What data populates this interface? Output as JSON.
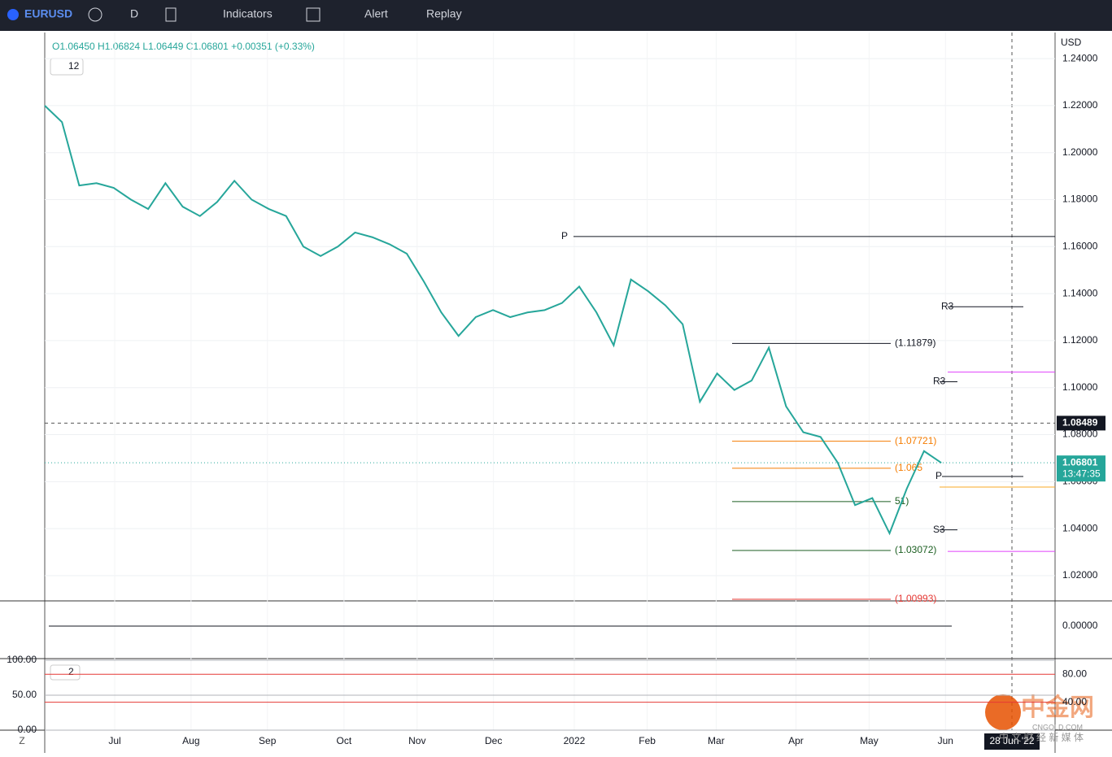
{
  "toolbar": {
    "symbol": "EURUSD",
    "interval": "D",
    "indicators": "Indicators",
    "alert": "Alert",
    "replay": "Replay"
  },
  "legend": {
    "ohlc": "O1.06450 H1.06824 L1.06449 C1.06801 +0.00351 (+0.33%)",
    "badge_main": "12",
    "badge_osc": "2"
  },
  "currency": "USD",
  "chart_data": [
    {
      "type": "line",
      "xlim": [
        0,
        410.2
      ],
      "ylim": [
        1.0096,
        1.2511
      ],
      "yticks": [
        {
          "value": 1.02,
          "label": "1.02000"
        },
        {
          "value": 1.04,
          "label": "1.04000"
        },
        {
          "value": 1.06,
          "label": "1.06000"
        },
        {
          "value": 1.08,
          "label": "1.08000"
        },
        {
          "value": 1.1,
          "label": "1.10000"
        },
        {
          "value": 1.12,
          "label": "1.12000"
        },
        {
          "value": 1.14,
          "label": "1.14000"
        },
        {
          "value": 1.16,
          "label": "1.16000"
        },
        {
          "value": 1.18,
          "label": "1.18000"
        },
        {
          "value": 1.2,
          "label": "1.20000"
        },
        {
          "value": 1.22,
          "label": "1.22000"
        },
        {
          "value": 1.24,
          "label": "1.24000"
        }
      ],
      "xticks": [
        {
          "value": 28.4,
          "label": "Jul"
        },
        {
          "value": 59.4,
          "label": "Aug"
        },
        {
          "value": 90.4,
          "label": "Sep"
        },
        {
          "value": 121.5,
          "label": "Oct"
        },
        {
          "value": 151.2,
          "label": "Nov"
        },
        {
          "value": 182.2,
          "label": "Dec"
        },
        {
          "value": 215,
          "label": "2022"
        },
        {
          "value": 244.6,
          "label": "Feb"
        },
        {
          "value": 272.6,
          "label": "Mar"
        },
        {
          "value": 305,
          "label": "Apr"
        },
        {
          "value": 334.7,
          "label": "May"
        },
        {
          "value": 365.7,
          "label": "Jun"
        }
      ],
      "series": [
        {
          "name": "EURUSD",
          "color": "#26a69a",
          "x": [
            0,
            7,
            14,
            21,
            28,
            35,
            42,
            49,
            56,
            63,
            70,
            77,
            84,
            91,
            98,
            105,
            112,
            119,
            126,
            133,
            140,
            147,
            154,
            161,
            168,
            175,
            182,
            189,
            196,
            203,
            210,
            217,
            224,
            231,
            238,
            245,
            252,
            259,
            266,
            273,
            280,
            287,
            294,
            301,
            308,
            315,
            322,
            329,
            336,
            343,
            350,
            357,
            364
          ],
          "values": [
            1.22,
            1.213,
            1.186,
            1.187,
            1.185,
            1.18,
            1.176,
            1.187,
            1.177,
            1.173,
            1.179,
            1.188,
            1.18,
            1.176,
            1.173,
            1.16,
            1.156,
            1.16,
            1.166,
            1.164,
            1.161,
            1.157,
            1.145,
            1.132,
            1.122,
            1.13,
            1.133,
            1.13,
            1.132,
            1.133,
            1.136,
            1.143,
            1.132,
            1.118,
            1.146,
            1.141,
            1.135,
            1.127,
            1.094,
            1.106,
            1.099,
            1.103,
            1.117,
            1.092,
            1.081,
            1.079,
            1.068,
            1.05,
            1.053,
            1.038,
            1.057,
            1.073,
            1.068
          ]
        }
      ],
      "levels": [
        {
          "label": "P",
          "value": 1.1643,
          "color": "#131722"
        },
        {
          "label": "R3",
          "value": 1.1344,
          "color": "#131722"
        },
        {
          "label": "(1.11879)",
          "value": 1.11879,
          "color": "#131722"
        },
        {
          "label": "R3",
          "value": 1.1025,
          "color": "#131722"
        },
        {
          "value": 1.1066,
          "color": "#e040fb"
        },
        {
          "label": "(1.07721)",
          "value": 1.07721,
          "color": "#f57c00"
        },
        {
          "label": "(1.065",
          "value": 1.0657,
          "color": "#f57c00"
        },
        {
          "label": "P",
          "value": 1.0622,
          "color": "#131722"
        },
        {
          "value": 1.0577,
          "color": "#f9a825"
        },
        {
          "label": "51)",
          "value": 1.0515,
          "color": "#1b5e20"
        },
        {
          "label": "S3",
          "value": 1.0395,
          "color": "#131722"
        },
        {
          "label": "(1.03072)",
          "value": 1.03072,
          "color": "#1b5e20"
        },
        {
          "value": 1.0303,
          "color": "#e040fb"
        },
        {
          "label": "(1.00993)",
          "value": 1.00993,
          "color": "#e53935"
        }
      ],
      "last_price": {
        "value": 1.06801,
        "label": "1.06801"
      },
      "crosshair_price": {
        "value": 1.08489,
        "label": "1.08489"
      },
      "countdown": "13:47:35"
    },
    {
      "type": "oscillator",
      "ylim": [
        -0.04,
        0.03
      ],
      "yticks": [
        {
          "value": 0,
          "label": "0.00000"
        }
      ]
    },
    {
      "type": "oscillator",
      "ylim": [
        0,
        100
      ],
      "yticks": [
        {
          "value": 0,
          "label": "0.00"
        },
        {
          "value": 50,
          "label": "50.00"
        },
        {
          "value": 100,
          "label": "100.00"
        }
      ],
      "y2lim": [
        0,
        100
      ],
      "y2ticks": [
        {
          "value": 40,
          "label": "40.00"
        },
        {
          "value": 80,
          "label": "80.00"
        }
      ]
    }
  ],
  "crosshair_date": "28 Jun '22",
  "watermark": {
    "name": "中金网",
    "site": "CNGOLD.COM",
    "slogan": "中 文 财 经 新 媒 体"
  },
  "corner": "Z"
}
